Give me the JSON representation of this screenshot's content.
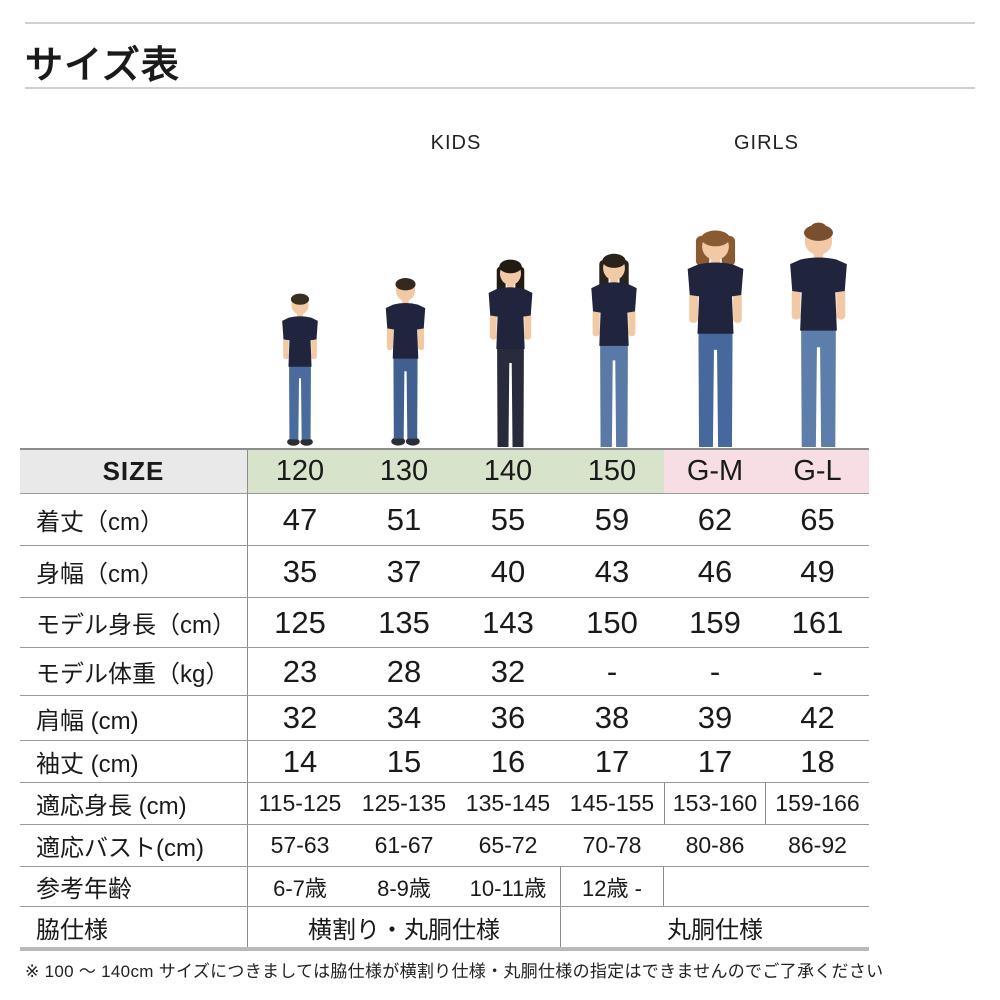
{
  "page": {
    "title": "サイズ表",
    "footnote": "※ 100 ～ 140cm サイズにつきましては脇仕様が横割り仕様・丸胴仕様の指定はできませんのでご了承ください"
  },
  "groups": {
    "kids": {
      "label": "KIDS",
      "color": "#d7e3cb"
    },
    "girls": {
      "label": "GIRLS",
      "color": "#f7dee4"
    }
  },
  "colors": {
    "header_gray": "#e9e9e9",
    "table_line": "#8c8c8c",
    "shirt_navy": "#20243d",
    "skin": "#f1c9a5"
  },
  "size_header": {
    "label": "SIZE",
    "sizes": [
      "120",
      "130",
      "140",
      "150",
      "G-M",
      "G-L"
    ]
  },
  "rows": [
    {
      "key": "body_length",
      "label": "着丈（cm）",
      "values": [
        "47",
        "51",
        "55",
        "59",
        "62",
        "65"
      ]
    },
    {
      "key": "body_width",
      "label": "身幅（cm）",
      "values": [
        "35",
        "37",
        "40",
        "43",
        "46",
        "49"
      ]
    },
    {
      "key": "model_height",
      "label": "モデル身長（cm）",
      "values": [
        "125",
        "135",
        "143",
        "150",
        "159",
        "161"
      ]
    },
    {
      "key": "model_weight",
      "label": "モデル体重（kg）",
      "values": [
        "23",
        "28",
        "32",
        "-",
        "-",
        "-"
      ]
    },
    {
      "key": "shoulder_width",
      "label": "肩幅 (cm)",
      "values": [
        "32",
        "34",
        "36",
        "38",
        "39",
        "42"
      ]
    },
    {
      "key": "sleeve_length",
      "label": "袖丈 (cm)",
      "values": [
        "14",
        "15",
        "16",
        "17",
        "17",
        "18"
      ]
    },
    {
      "key": "fit_height",
      "label": "適応身長 (cm)",
      "values": [
        "115-125",
        "125-135",
        "135-145",
        "145-155",
        "153-160",
        "159-166"
      ],
      "boxed": [
        4
      ]
    },
    {
      "key": "fit_bust",
      "label": "適応バスト(cm)",
      "values": [
        "57-63",
        "61-67",
        "65-72",
        "70-78",
        "80-86",
        "86-92"
      ]
    },
    {
      "key": "reference_age",
      "label": "参考年齢",
      "values": [
        "6-7歳",
        "8-9歳",
        "10-11歳",
        "12歳 -",
        "",
        ""
      ],
      "boxed": [
        3
      ]
    },
    {
      "key": "side_spec",
      "label": "脇仕様",
      "merged": [
        {
          "text": "横割り・丸胴仕様",
          "span": 3
        },
        {
          "text": "丸胴仕様",
          "span": 3
        }
      ]
    }
  ],
  "models": [
    {
      "size": "120",
      "type": "boy",
      "hair_style": "short",
      "hair_color": "#3a2d22",
      "pants_color": "#4a6b9d"
    },
    {
      "size": "130",
      "type": "boy",
      "hair_style": "short",
      "hair_color": "#35291f",
      "pants_color": "#41608f"
    },
    {
      "size": "140",
      "type": "girl",
      "hair_style": "long",
      "hair_color": "#211b14",
      "pants_color": "#272b3c"
    },
    {
      "size": "150",
      "type": "girl",
      "hair_style": "mid",
      "hair_color": "#2a231c",
      "pants_color": "#5a79a6"
    },
    {
      "size": "G-M",
      "type": "woman",
      "hair_style": "bob",
      "hair_color": "#8a5a33",
      "pants_color": "#46689c"
    },
    {
      "size": "G-L",
      "type": "woman",
      "hair_style": "tied",
      "hair_color": "#7a4f2d",
      "pants_color": "#5d7dab"
    }
  ]
}
